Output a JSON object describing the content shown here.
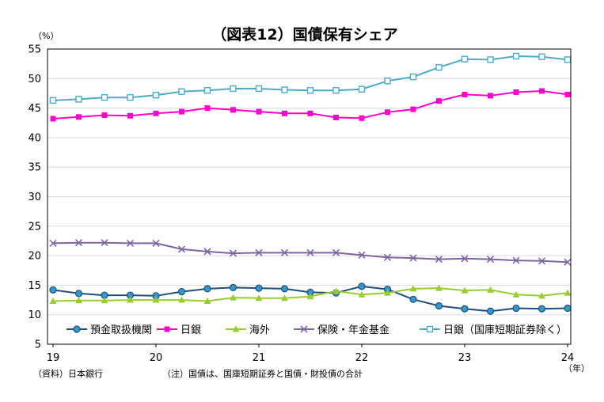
{
  "chart_data": {
    "type": "line",
    "title": "（図表12）国債保有シェア",
    "ylabel": "（%）",
    "xlabel": "（年）",
    "ylim": [
      5,
      55
    ],
    "yticks": [
      5,
      10,
      15,
      20,
      25,
      30,
      35,
      40,
      45,
      50,
      55
    ],
    "xlim": [
      2019,
      2024
    ],
    "xticks": [
      {
        "value": 2019,
        "label": "19"
      },
      {
        "value": 2020,
        "label": "20"
      },
      {
        "value": 2021,
        "label": "21"
      },
      {
        "value": 2022,
        "label": "22"
      },
      {
        "value": 2023,
        "label": "23"
      },
      {
        "value": 2024,
        "label": "24"
      }
    ],
    "x": [
      2019.0,
      2019.25,
      2019.5,
      2019.75,
      2020.0,
      2020.25,
      2020.5,
      2020.75,
      2021.0,
      2021.25,
      2021.5,
      2021.75,
      2022.0,
      2022.25,
      2022.5,
      2022.75,
      2023.0,
      2023.25,
      2023.5,
      2023.75,
      2024.0
    ],
    "grid": true,
    "legend_position": "bottom-inside",
    "series": [
      {
        "name": "預金取扱機関",
        "color": "#1f4e79",
        "marker": "circle",
        "marker_fill": "#3399cc",
        "values": [
          14.2,
          13.6,
          13.3,
          13.3,
          13.2,
          13.9,
          14.4,
          14.6,
          14.5,
          14.4,
          13.8,
          13.7,
          14.8,
          14.3,
          12.6,
          11.5,
          11.0,
          10.6,
          11.1,
          11.0,
          11.1
        ]
      },
      {
        "name": "日銀",
        "color": "#ff00cc",
        "marker": "square",
        "values": [
          43.2,
          43.5,
          43.8,
          43.7,
          44.1,
          44.4,
          45.0,
          44.7,
          44.4,
          44.1,
          44.1,
          43.4,
          43.3,
          44.3,
          44.8,
          46.2,
          47.3,
          47.1,
          47.7,
          47.9,
          47.3
        ]
      },
      {
        "name": "海外",
        "color": "#99cc33",
        "marker": "triangle",
        "values": [
          12.3,
          12.4,
          12.4,
          12.5,
          12.5,
          12.5,
          12.3,
          12.9,
          12.8,
          12.8,
          13.1,
          14.0,
          13.4,
          13.7,
          14.4,
          14.5,
          14.1,
          14.2,
          13.4,
          13.2,
          13.7
        ]
      },
      {
        "name": "保険・年金基金",
        "color": "#8064a2",
        "marker": "x",
        "values": [
          22.1,
          22.2,
          22.2,
          22.1,
          22.1,
          21.1,
          20.7,
          20.4,
          20.5,
          20.5,
          20.5,
          20.5,
          20.1,
          19.7,
          19.6,
          19.4,
          19.5,
          19.4,
          19.2,
          19.1,
          18.9
        ]
      },
      {
        "name": "日銀（国庫短期証券除く）",
        "color": "#4bacc6",
        "marker": "square-open",
        "values": [
          46.3,
          46.5,
          46.8,
          46.8,
          47.2,
          47.8,
          48.0,
          48.3,
          48.3,
          48.1,
          48.0,
          48.0,
          48.2,
          49.6,
          50.3,
          51.9,
          53.3,
          53.2,
          53.8,
          53.7,
          53.2
        ]
      }
    ],
    "notes": {
      "source": "（資料）日本銀行",
      "note": "（注）国債は、国庫短期証券と国債・財投債の合計"
    }
  }
}
